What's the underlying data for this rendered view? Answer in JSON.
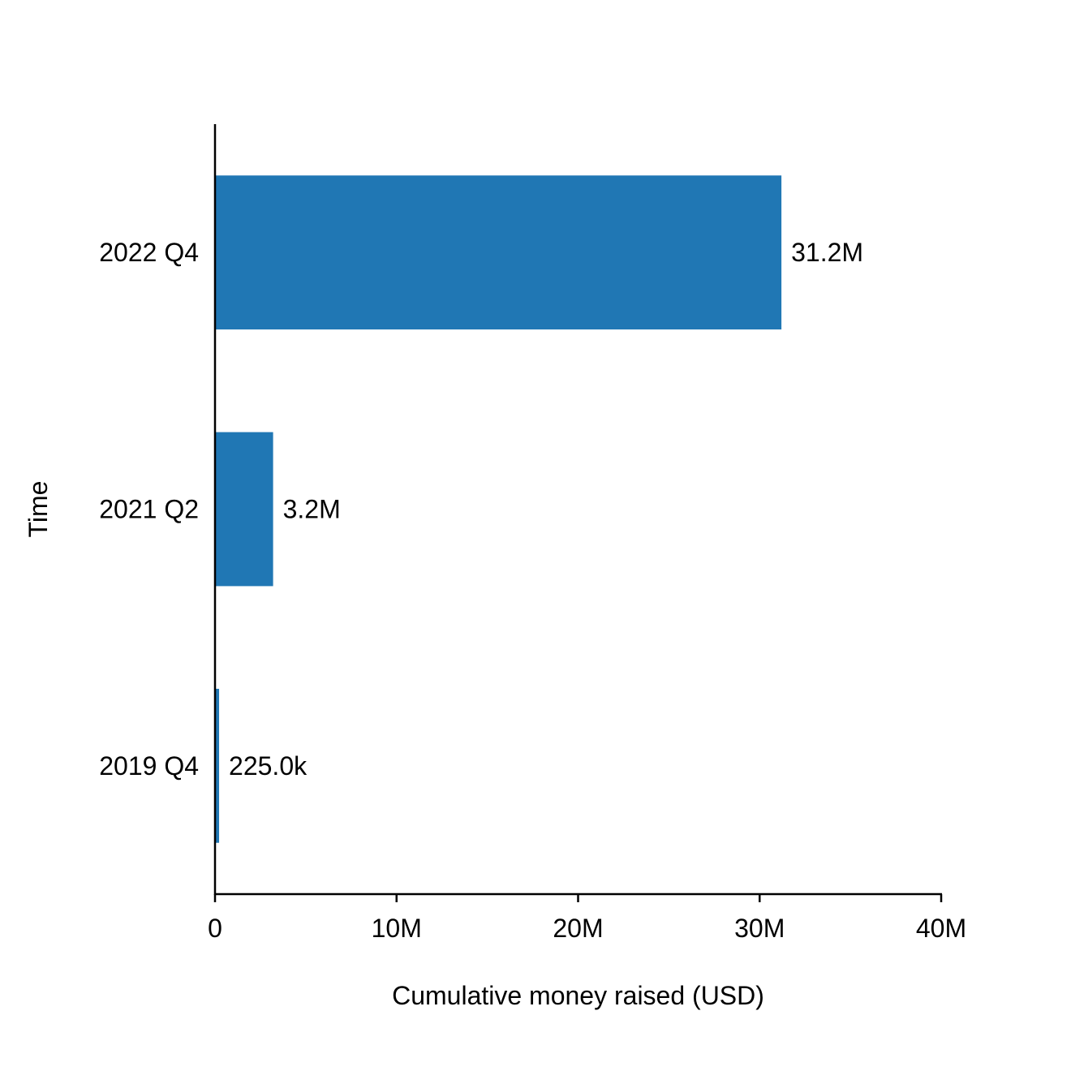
{
  "chart_data": {
    "type": "bar",
    "orientation": "horizontal",
    "categories": [
      "2019 Q4",
      "2021 Q2",
      "2022 Q4"
    ],
    "values": [
      225000,
      3200000,
      31200000
    ],
    "data_labels": [
      "225.0k",
      "3.2M",
      "31.2M"
    ],
    "title": "",
    "xlabel": "Cumulative money raised (USD)",
    "ylabel": "Time",
    "xlim": [
      0,
      40000000
    ],
    "xticks": [
      0,
      10000000,
      20000000,
      30000000,
      40000000
    ],
    "xtick_labels": [
      "0",
      "10M",
      "20M",
      "30M",
      "40M"
    ],
    "grid": false,
    "legend": "none",
    "bar_color": "#2077b4"
  }
}
